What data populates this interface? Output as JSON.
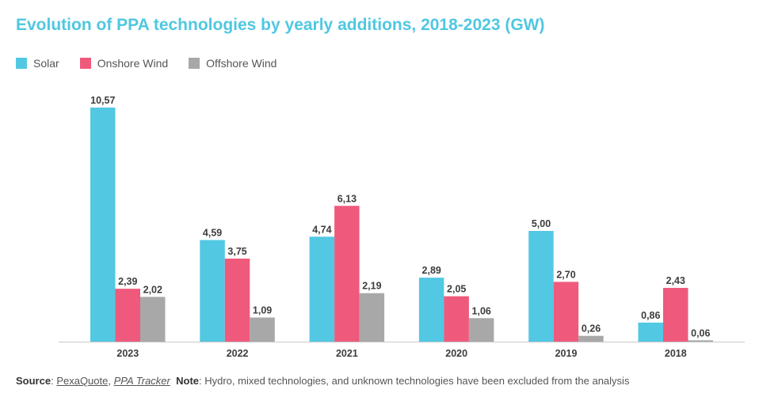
{
  "title": "Evolution of PPA technologies by yearly additions, 2018-2023 (GW)",
  "colors": {
    "solar": "#52c8e3",
    "onshore": "#ef5a7c",
    "offshore": "#a8a8a8",
    "title": "#4fc7e1"
  },
  "legend": [
    {
      "label": "Solar",
      "color": "#52c8e3"
    },
    {
      "label": "Onshore Wind",
      "color": "#ef5a7c"
    },
    {
      "label": "Offshore Wind",
      "color": "#a8a8a8"
    }
  ],
  "chart_data": {
    "type": "bar",
    "title": "Evolution of PPA technologies by yearly additions, 2018-2023 (GW)",
    "xlabel": "",
    "ylabel": "",
    "categories": [
      "2023",
      "2022",
      "2021",
      "2020",
      "2019",
      "2018"
    ],
    "series": [
      {
        "name": "Solar",
        "color": "#52c8e3",
        "values": [
          10.57,
          4.59,
          4.74,
          2.89,
          5.0,
          0.86
        ],
        "labels": [
          "10,57",
          "4,59",
          "4,74",
          "2,89",
          "5,00",
          "0,86"
        ]
      },
      {
        "name": "Onshore Wind",
        "color": "#ef5a7c",
        "values": [
          2.39,
          3.75,
          6.13,
          2.05,
          2.7,
          2.43
        ],
        "labels": [
          "2,39",
          "3,75",
          "6,13",
          "2,05",
          "2,70",
          "2,43"
        ]
      },
      {
        "name": "Offshore Wind",
        "color": "#a8a8a8",
        "values": [
          2.02,
          1.09,
          2.19,
          1.06,
          0.26,
          0.06
        ],
        "labels": [
          "2,02",
          "1,09",
          "2,19",
          "1,06",
          "0,26",
          "0,06"
        ]
      }
    ],
    "ylim": [
      0,
      10.57
    ],
    "grid": false,
    "legend_position": "top-left"
  },
  "footer": {
    "source_label": "Source",
    "source_sep": ": ",
    "source_name": "PexaQuote",
    "source_comma": ", ",
    "source_product": "PPA Tracker",
    "note_label": "Note",
    "note_text": ": Hydro, mixed technologies, and unknown technologies have been excluded from the analysis"
  }
}
